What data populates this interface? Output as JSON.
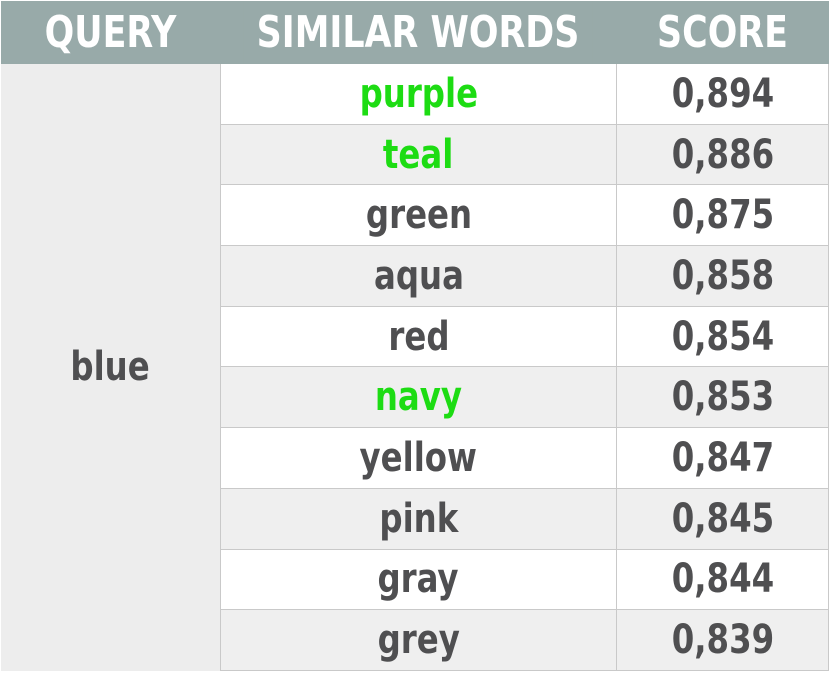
{
  "headers": {
    "query": "QUERY",
    "similar_words": "SIMILAR WORDS",
    "score": "SCORE"
  },
  "query": "blue",
  "rows": [
    {
      "word": "purple",
      "score": "0,894",
      "highlight": true
    },
    {
      "word": "teal",
      "score": "0,886",
      "highlight": true
    },
    {
      "word": "green",
      "score": "0,875",
      "highlight": false
    },
    {
      "word": "aqua",
      "score": "0,858",
      "highlight": false
    },
    {
      "word": "red",
      "score": "0,854",
      "highlight": false
    },
    {
      "word": "navy",
      "score": "0,853",
      "highlight": true
    },
    {
      "word": "yellow",
      "score": "0,847",
      "highlight": false
    },
    {
      "word": "pink",
      "score": "0,845",
      "highlight": false
    },
    {
      "word": "gray",
      "score": "0,844",
      "highlight": false
    },
    {
      "word": "grey",
      "score": "0,839",
      "highlight": false
    }
  ],
  "colors": {
    "header_bg": "#98aaa9",
    "header_text": "#ffffff",
    "text": "#4f4f51",
    "highlight": "#1ddc13",
    "row_alt": "#efefef",
    "query_bg": "#ededed"
  }
}
